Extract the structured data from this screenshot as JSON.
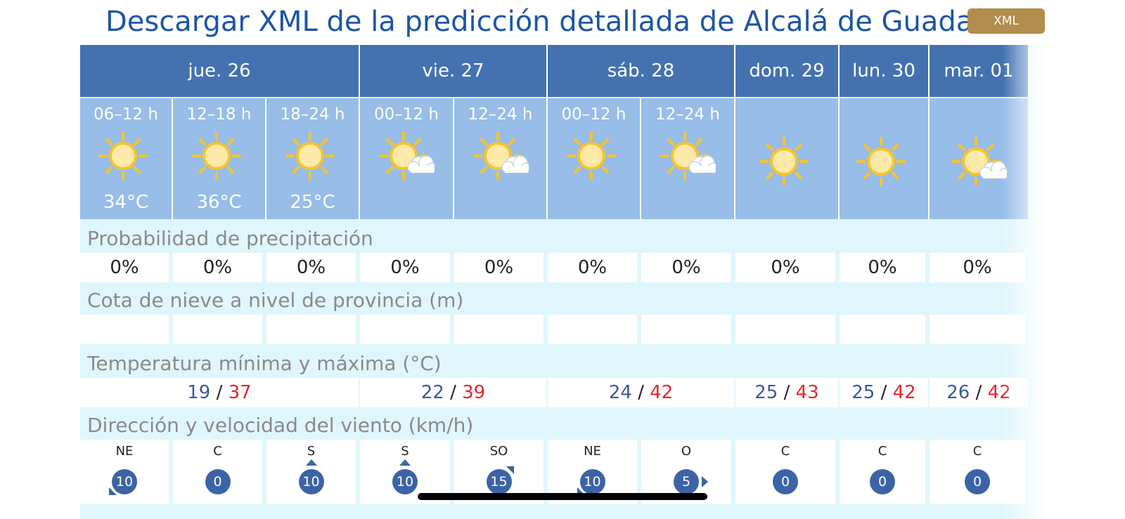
{
  "header": {
    "title": "Descargar XML de la predicción detallada de Alcalá de Guadaíra",
    "xml_button": "XML"
  },
  "days": [
    {
      "label": "jue. 26",
      "tmin": "19",
      "tmax": "37"
    },
    {
      "label": "vie. 27",
      "tmin": "22",
      "tmax": "39"
    },
    {
      "label": "sáb. 28",
      "tmin": "24",
      "tmax": "42"
    },
    {
      "label": "dom. 29",
      "tmin": "25",
      "tmax": "43"
    },
    {
      "label": "lun. 30",
      "tmin": "25",
      "tmax": "42"
    },
    {
      "label": "mar. 01",
      "tmin": "26",
      "tmax": "42"
    }
  ],
  "temp_separator": "/",
  "periods": [
    {
      "label": "06–12 h",
      "icon": "sun-icon",
      "temp": "34°C",
      "precip": "0%",
      "wind_dir": "NE",
      "wind_speed": "10"
    },
    {
      "label": "12–18 h",
      "icon": "sun-icon",
      "temp": "36°C",
      "precip": "0%",
      "wind_dir": "C",
      "wind_speed": "0"
    },
    {
      "label": "18–24 h",
      "icon": "sun-icon",
      "temp": "25°C",
      "precip": "0%",
      "wind_dir": "S",
      "wind_speed": "10"
    },
    {
      "label": "00–12 h",
      "icon": "sun-cloud-icon",
      "temp": "",
      "precip": "0%",
      "wind_dir": "S",
      "wind_speed": "10"
    },
    {
      "label": "12–24 h",
      "icon": "sun-cloud-icon",
      "temp": "",
      "precip": "0%",
      "wind_dir": "SO",
      "wind_speed": "15"
    },
    {
      "label": "00–12 h",
      "icon": "sun-icon",
      "temp": "",
      "precip": "0%",
      "wind_dir": "NE",
      "wind_speed": "10"
    },
    {
      "label": "12–24 h",
      "icon": "sun-cloud-icon",
      "temp": "",
      "precip": "0%",
      "wind_dir": "O",
      "wind_speed": "5"
    },
    {
      "label": "",
      "icon": "sun-icon",
      "temp": "",
      "precip": "0%",
      "wind_dir": "C",
      "wind_speed": "0"
    },
    {
      "label": "",
      "icon": "sun-icon",
      "temp": "",
      "precip": "0%",
      "wind_dir": "C",
      "wind_speed": "0"
    },
    {
      "label": "",
      "icon": "sun-cloud-icon",
      "temp": "",
      "precip": "0%",
      "wind_dir": "C",
      "wind_speed": "0"
    }
  ],
  "sections": {
    "precip": "Probabilidad de precipitación",
    "snow": "Cota de nieve a nivel de provincia (m)",
    "temp": "Temperatura mínima y máxima (°C)",
    "wind": "Dirección y velocidad del viento (km/h)"
  },
  "colors": {
    "day_header": "#4472b0",
    "period_bg": "#97bde8",
    "row_bg": "#e0f6fd",
    "title": "#1d55a6",
    "xml_button": "#b28c4c",
    "tmin": "#3a5a9c",
    "tmax": "#e6262d",
    "wind_badge": "#3c63a6"
  }
}
